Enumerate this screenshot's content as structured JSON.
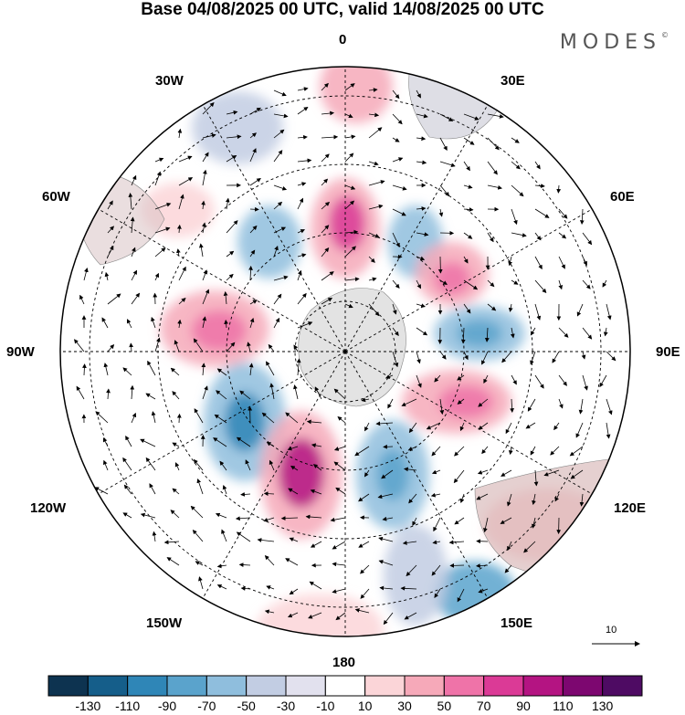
{
  "title": "Base 04/08/2025 00 UTC, valid 14/08/2025 00 UTC",
  "brand": "MODES",
  "brand_mark": "©",
  "longitude_labels": {
    "top": "0",
    "top_right": "30E",
    "right_upper": "60E",
    "right": "90E",
    "right_lower": "120E",
    "bottom_right": "150E",
    "bottom": "180",
    "bottom_left": "150W",
    "left_lower": "120W",
    "left": "90W",
    "left_upper": "60W",
    "top_left": "30W"
  },
  "vector_reference": "10",
  "colorbar": {
    "ticks": [
      "-130",
      "-110",
      "-90",
      "-70",
      "-50",
      "-30",
      "-10",
      "10",
      "30",
      "50",
      "70",
      "90",
      "110",
      "130"
    ],
    "colors": [
      "#0d3350",
      "#155e8a",
      "#2f86b7",
      "#5aa3cc",
      "#8fbedd",
      "#c2cde3",
      "#e2e1ee",
      "#ffffff",
      "#fbd5d8",
      "#f6a9b9",
      "#ef73a8",
      "#db3a96",
      "#b41482",
      "#7d0770",
      "#4e0b63"
    ]
  },
  "chart_data": {
    "type": "polar-stereographic map",
    "projection": "south polar stereographic",
    "field": "shaded anomaly with wind vectors",
    "color_scale_ticks": [
      -130,
      -110,
      -90,
      -70,
      -50,
      -30,
      -10,
      10,
      30,
      50,
      70,
      90,
      110,
      130
    ],
    "vector_reference_magnitude": 10
  }
}
